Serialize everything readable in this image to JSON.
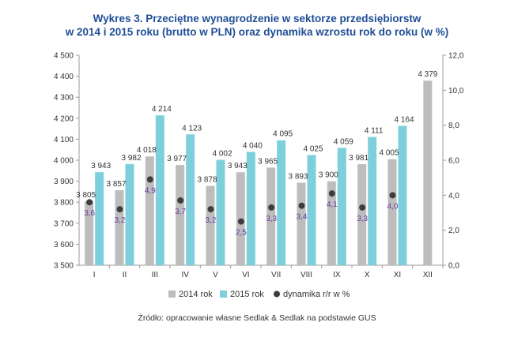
{
  "title_line1": "Wykres 3. Przeciętne wynagrodzenie w sektorze przedsiębiorstw",
  "title_line2": "w 2014 i 2015 roku (brutto w PLN) oraz dynamika wzrostu rok do roku (w %)",
  "source": "Źródło: opracowanie własne Sedlak & Sedlak na podstawie GUS",
  "chart_data": {
    "type": "bar",
    "categories": [
      "I",
      "II",
      "III",
      "IV",
      "V",
      "VI",
      "VII",
      "VIII",
      "IX",
      "X",
      "XI",
      "XII"
    ],
    "series": [
      {
        "name": "2014 rok",
        "color": "#bdbdbd",
        "values": [
          3805,
          3857,
          4018,
          3977,
          3878,
          3943,
          3965,
          3893,
          3900,
          3981,
          4005,
          4379
        ],
        "labels": [
          "3 805",
          "3 857",
          "4 018",
          "3 977",
          "3 878",
          "3 943",
          "3 965",
          "3 893",
          "3 900",
          "3 981",
          "4 005",
          "4 379"
        ]
      },
      {
        "name": "2015 rok",
        "color": "#7ecfdc",
        "values": [
          3943,
          3982,
          4214,
          4123,
          4002,
          4040,
          4095,
          4025,
          4059,
          4111,
          4164,
          null
        ],
        "labels": [
          "3 943",
          "3 982",
          "4 214",
          "4 123",
          "4 002",
          "4 040",
          "4 095",
          "4 025",
          "4 059",
          "4 111",
          "4 164",
          ""
        ]
      },
      {
        "name": "dynamika r/r w %",
        "type": "scatter",
        "axis": "right",
        "color": "#3d3d3d",
        "label_color": "#6a3d9a",
        "values": [
          3.6,
          3.2,
          4.9,
          3.7,
          3.2,
          2.5,
          3.3,
          3.4,
          4.1,
          3.3,
          4.0,
          null
        ],
        "labels": [
          "3,6",
          "3,2",
          "4,9",
          "3,7",
          "3,2",
          "2,5",
          "3,3",
          "3,4",
          "4,1",
          "3,3",
          "4,0",
          ""
        ]
      }
    ],
    "y_left": {
      "min": 3500,
      "max": 4500,
      "step": 100,
      "tick_labels": [
        "3 500",
        "3 600",
        "3 700",
        "3 800",
        "3 900",
        "4 000",
        "4 100",
        "4 200",
        "4 300",
        "4 400",
        "4 500"
      ]
    },
    "y_right": {
      "min": 0,
      "max": 12,
      "step": 2,
      "tick_labels": [
        "0,0",
        "2,0",
        "4,0",
        "6,0",
        "8,0",
        "10,0",
        "12,0"
      ]
    },
    "grid": false,
    "legend": "bottom"
  }
}
